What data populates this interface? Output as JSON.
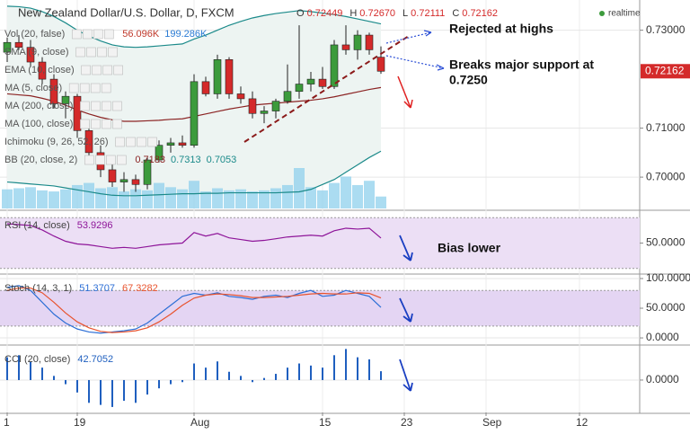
{
  "header": {
    "title": "New Zealand Dollar/U.S. Dollar, D, FXCM",
    "ohlc": [
      {
        "key": "O",
        "label": "0.72449"
      },
      {
        "key": "H",
        "label": "0.72670"
      },
      {
        "key": "L",
        "label": "0.72111"
      },
      {
        "key": "C",
        "label": "0.72162"
      }
    ],
    "realtime": "realtime"
  },
  "studies": [
    {
      "name": "Vol (20, false)",
      "values": [
        {
          "label": "56.096K",
          "color": "#c0392b"
        },
        {
          "label": "199.286K",
          "color": "#2a7bd4"
        }
      ]
    },
    {
      "name": "SMA (9, close)"
    },
    {
      "name": "EMA (10, close)"
    },
    {
      "name": "MA (5, close)"
    },
    {
      "name": "MA (200, close)"
    },
    {
      "name": "MA (100, close)"
    },
    {
      "name": "Ichimoku (9, 26, 52, 26)"
    },
    {
      "name": "BB (20, close, 2)"
    }
  ],
  "annotations": [
    "Rejected at highs",
    "Breaks major support at",
    "0.7250",
    "Bias lower"
  ],
  "chart_data": [
    {
      "type": "candlestick",
      "up_color": "#3c9b3c",
      "down_color": "#d42a2a",
      "categories": [
        "1",
        null,
        null,
        null,
        null,
        null,
        "19",
        null,
        null,
        null,
        null,
        null,
        null,
        null,
        null,
        null,
        "Aug",
        null,
        null,
        null,
        null,
        null,
        null,
        null,
        null,
        null,
        null,
        "15",
        null,
        null,
        null,
        null,
        null,
        null,
        "23",
        null,
        null,
        null,
        null,
        null,
        null,
        "Sep",
        null,
        null,
        null,
        null,
        null,
        null,
        null,
        "12"
      ],
      "open": [
        0.7255,
        0.7275,
        0.7265,
        0.7235,
        0.72,
        0.715,
        0.7165,
        0.7095,
        0.705,
        0.7015,
        0.699,
        0.6995,
        0.6985,
        0.7035,
        0.7065,
        0.707,
        0.7065,
        0.7195,
        0.717,
        0.724,
        0.717,
        0.716,
        0.713,
        0.7135,
        0.7155,
        0.7175,
        0.719,
        0.72,
        0.7185,
        0.727,
        0.726,
        0.729,
        0.72449,
        null,
        null,
        null,
        null,
        null,
        null,
        null,
        null,
        null,
        null,
        null,
        null,
        null,
        null,
        null,
        null,
        null
      ],
      "high": [
        0.7285,
        0.729,
        0.728,
        0.7245,
        0.721,
        0.7175,
        0.717,
        0.711,
        0.7065,
        0.703,
        0.701,
        0.7005,
        0.704,
        0.7075,
        0.708,
        0.7085,
        0.721,
        0.7205,
        0.725,
        0.7245,
        0.7185,
        0.7175,
        0.7145,
        0.716,
        0.723,
        0.731,
        0.7215,
        0.7225,
        0.728,
        0.731,
        0.73,
        0.7295,
        0.7267,
        null,
        null,
        null,
        null,
        null,
        null,
        null,
        null,
        null,
        null,
        null,
        null,
        null,
        null,
        null,
        null,
        null
      ],
      "low": [
        0.7235,
        0.726,
        0.7225,
        0.719,
        0.714,
        0.712,
        0.708,
        0.704,
        0.7,
        0.698,
        0.697,
        0.697,
        0.6975,
        0.703,
        0.705,
        0.706,
        0.706,
        0.7165,
        0.716,
        0.716,
        0.715,
        0.712,
        0.711,
        0.712,
        0.715,
        0.716,
        0.7175,
        0.718,
        0.718,
        0.725,
        0.724,
        0.725,
        0.72111,
        null,
        null,
        null,
        null,
        null,
        null,
        null,
        null,
        null,
        null,
        null,
        null,
        null,
        null,
        null,
        null,
        null
      ],
      "close": [
        0.7275,
        0.7265,
        0.7235,
        0.72,
        0.715,
        0.7165,
        0.7095,
        0.705,
        0.7015,
        0.699,
        0.6995,
        0.6985,
        0.7035,
        0.7065,
        0.707,
        0.7065,
        0.7195,
        0.717,
        0.724,
        0.717,
        0.716,
        0.713,
        0.7135,
        0.7155,
        0.7175,
        0.719,
        0.72,
        0.7185,
        0.727,
        0.726,
        0.729,
        0.726,
        0.72162,
        null,
        null,
        null,
        null,
        null,
        null,
        null,
        null,
        null,
        null,
        null,
        null,
        null,
        null,
        null,
        null,
        null
      ],
      "series": [
        {
          "color": "#8b2323",
          "values": [
            0.717,
            0.7168,
            0.7166,
            0.7161,
            0.7155,
            0.7147,
            0.7137,
            0.7129,
            0.7122,
            0.7117,
            0.7114,
            0.7114,
            0.7115,
            0.7116,
            0.7118,
            0.7119,
            0.7124,
            0.7129,
            0.7134,
            0.7139,
            0.7143,
            0.7147,
            0.7149,
            0.7151,
            0.7153,
            0.7155,
            0.7157,
            0.716,
            0.7164,
            0.7169,
            0.7174,
            0.7179,
            0.7183,
            null,
            null,
            null,
            null,
            null,
            null,
            null,
            null,
            null,
            null,
            null,
            null,
            null,
            null,
            null,
            null,
            null
          ]
        },
        {
          "color": "#1b8a8a",
          "values": [
            0.7349,
            0.7348,
            0.7345,
            0.7338,
            0.7328,
            0.7315,
            0.73,
            0.7288,
            0.7278,
            0.727,
            0.7266,
            0.7265,
            0.7266,
            0.7268,
            0.727,
            0.7272,
            0.7282,
            0.729,
            0.73,
            0.731,
            0.7318,
            0.7325,
            0.733,
            0.7334,
            0.7337,
            0.734,
            0.7338,
            0.7335,
            0.7332,
            0.7328,
            0.7323,
            0.7318,
            0.7313,
            null,
            null,
            null,
            null,
            null,
            null,
            null,
            null,
            null,
            null,
            null,
            null,
            null,
            null,
            null,
            null,
            null
          ]
        },
        {
          "color": "#1b8a8a",
          "values": [
            0.699,
            0.6988,
            0.6986,
            0.6984,
            0.6982,
            0.6978,
            0.6974,
            0.697,
            0.6966,
            0.6963,
            0.6962,
            0.6962,
            0.6963,
            0.6964,
            0.6965,
            0.6966,
            0.6966,
            0.6967,
            0.6967,
            0.6968,
            0.6968,
            0.6968,
            0.6968,
            0.6968,
            0.6969,
            0.697,
            0.6975,
            0.6985,
            0.6995,
            0.701,
            0.7025,
            0.704,
            0.7053,
            null,
            null,
            null,
            null,
            null,
            null,
            null,
            null,
            null,
            null,
            null,
            null,
            null,
            null,
            null,
            null,
            null
          ]
        }
      ],
      "volume": {
        "color": "#8fd0ec",
        "values": [
          90,
          95,
          100,
          85,
          80,
          90,
          110,
          120,
          95,
          100,
          80,
          90,
          85,
          120,
          100,
          90,
          130,
          80,
          95,
          85,
          90,
          80,
          85,
          95,
          110,
          190,
          100,
          85,
          120,
          150,
          110,
          130,
          56.096,
          null,
          null,
          null,
          null,
          null,
          null,
          null,
          null,
          null,
          null,
          null,
          null,
          null,
          null,
          null,
          null,
          null
        ]
      },
      "ylim": [
        0.6936,
        0.7358
      ],
      "yticks": [
        {
          "value": 0.7,
          "label": "0.70000"
        },
        {
          "value": 0.71,
          "label": "0.71000"
        },
        {
          "value": 0.73,
          "label": "0.73000"
        }
      ],
      "grid": true
    },
    {
      "type": "line",
      "title": "RSI (14, close)",
      "ylim": [
        27,
        73
      ],
      "yticks": [
        {
          "value": 50,
          "label": "50.0000"
        }
      ],
      "band": [
        30,
        70
      ],
      "band_color": "#ecdff5",
      "grid": true,
      "series": [
        {
          "color": "#8e1599",
          "values": [
            65.2,
            64.5,
            63.8,
            60.3,
            55.5,
            51.4,
            49.3,
            48.6,
            47.2,
            45.9,
            46.6,
            45.9,
            47.2,
            48.6,
            49.3,
            50,
            58.3,
            55.5,
            57.6,
            54.1,
            52.8,
            51.4,
            52.1,
            53.4,
            54.8,
            55.5,
            56.2,
            55.5,
            59.7,
            61.7,
            61,
            61.7,
            53.9296,
            null,
            null,
            null,
            null,
            null,
            null,
            null,
            null,
            null,
            null,
            null,
            null,
            null,
            null,
            null,
            null,
            null
          ]
        }
      ]
    },
    {
      "type": "line",
      "title": "Stoch (14, 3, 1)",
      "ylim": [
        -9,
        103
      ],
      "yticks": [
        {
          "value": 100,
          "label": "100.0000"
        },
        {
          "value": 50,
          "label": "50.0000"
        },
        {
          "value": 0,
          "label": "0.0000"
        }
      ],
      "band": [
        20,
        80
      ],
      "band_color": "#e4d5f3",
      "grid": true,
      "series": [
        {
          "color": "#2d6fd6",
          "values": [
            85,
            88,
            80,
            60,
            40,
            25,
            15,
            10,
            8,
            10,
            12,
            15,
            25,
            40,
            55,
            70,
            75,
            72,
            76,
            70,
            68,
            65,
            70,
            72,
            68,
            75,
            80,
            70,
            72,
            80,
            75,
            70,
            51.3707,
            null,
            null,
            null,
            null,
            null,
            null,
            null,
            null,
            null,
            null,
            null,
            null,
            null,
            null,
            null,
            null,
            null
          ]
        },
        {
          "color": "#e8532e",
          "values": [
            80,
            84,
            84,
            76,
            60,
            42,
            27,
            17,
            11,
            9,
            10,
            12,
            17,
            27,
            40,
            55,
            67,
            72,
            74,
            73,
            71,
            68,
            68,
            69,
            70,
            72,
            74,
            75,
            74,
            74,
            76,
            75,
            67.3282,
            null,
            null,
            null,
            null,
            null,
            null,
            null,
            null,
            null,
            null,
            null,
            null,
            null,
            null,
            null,
            null,
            null
          ]
        }
      ]
    },
    {
      "type": "bar",
      "title": "CCI (20, close)",
      "color": "#1f5fbf",
      "ylim": [
        -152,
        156
      ],
      "yticks": [
        {
          "value": 0,
          "label": "0.0000"
        }
      ],
      "grid": true,
      "values": [
        110,
        120,
        90,
        60,
        20,
        -20,
        -60,
        -110,
        -120,
        -130,
        -100,
        -110,
        -70,
        -40,
        -20,
        -10,
        80,
        60,
        90,
        40,
        20,
        -10,
        10,
        30,
        60,
        80,
        70,
        60,
        120,
        150,
        110,
        100,
        42.7052,
        null,
        null,
        null,
        null,
        null,
        null,
        null,
        null,
        null,
        null,
        null,
        null,
        null,
        null,
        null,
        null,
        null
      ]
    }
  ]
}
